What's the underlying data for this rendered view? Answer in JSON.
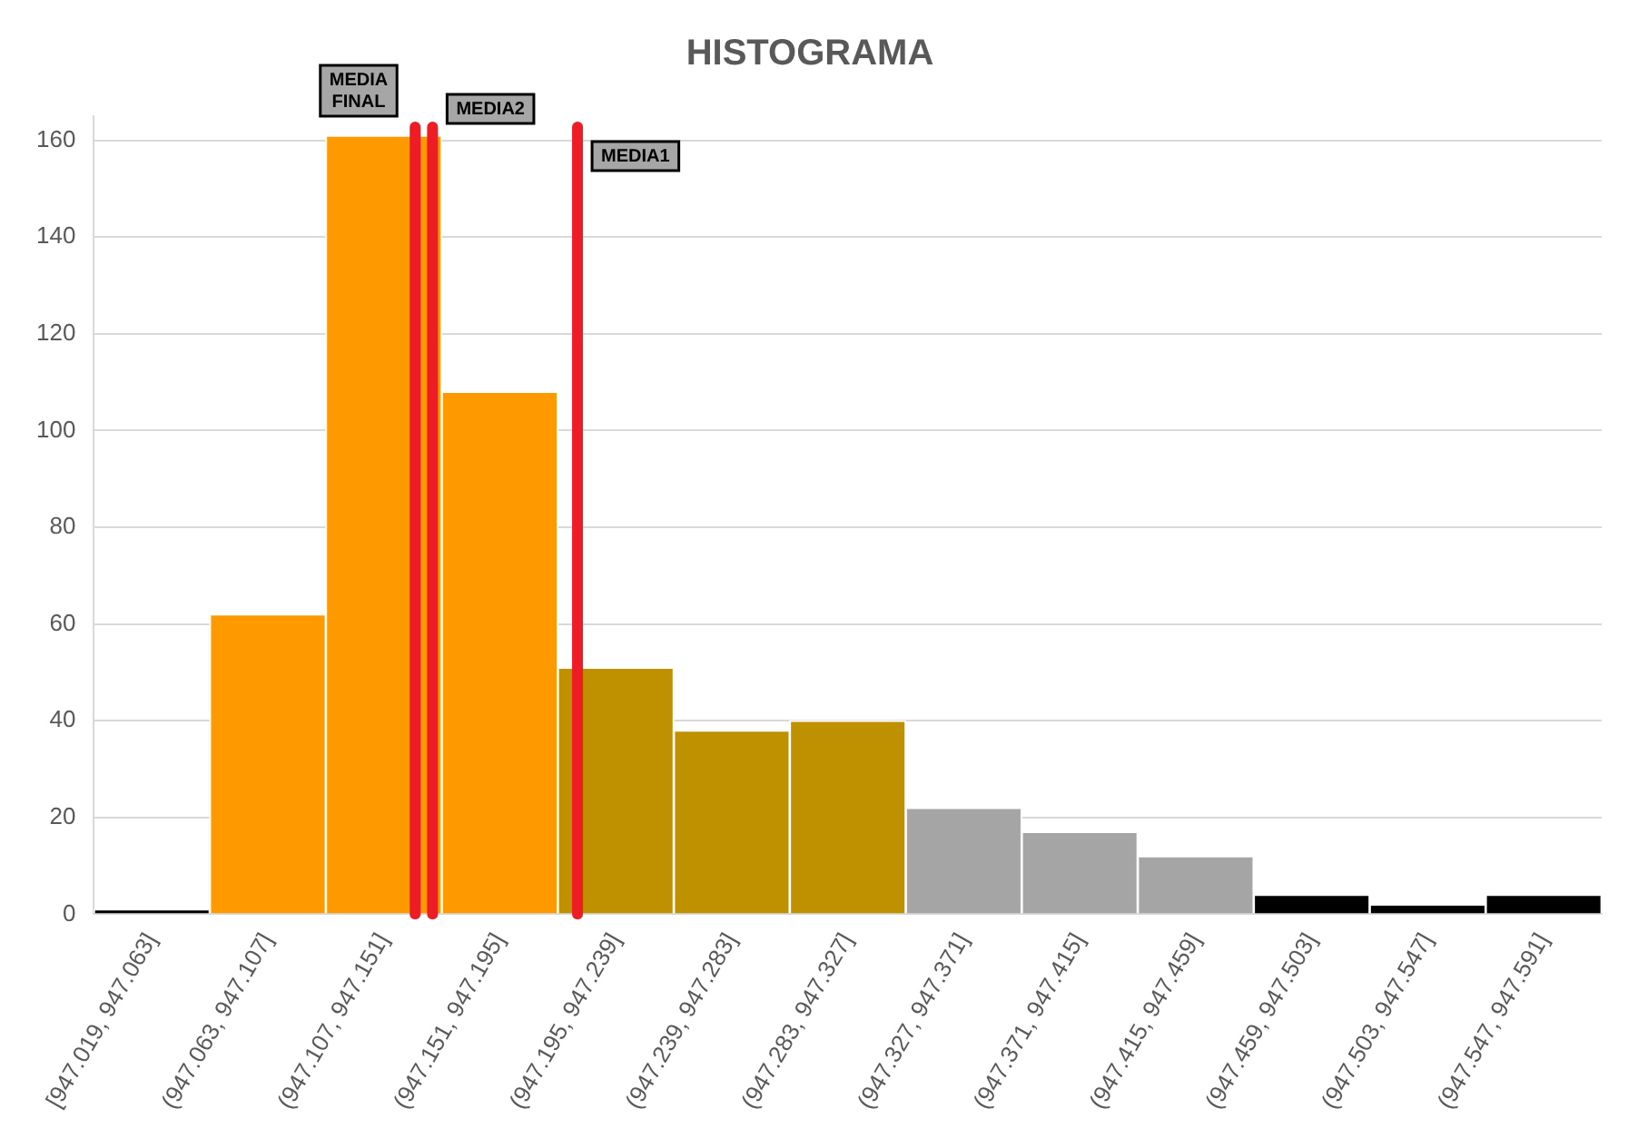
{
  "chart_data": {
    "type": "bar",
    "title": "HISTOGRAMA",
    "categories": [
      "[947.019, 947.063]",
      "(947.063, 947.107]",
      "(947.107, 947.151]",
      "(947.151, 947.195]",
      "(947.195, 947.239]",
      "(947.239, 947.283]",
      "(947.283, 947.327]",
      "(947.327, 947.371]",
      "(947.371, 947.415]",
      "(947.415, 947.459]",
      "(947.459, 947.503]",
      "(947.503, 947.547]",
      "(947.547, 947.591]"
    ],
    "values": [
      1,
      62,
      161,
      108,
      51,
      38,
      40,
      22,
      17,
      12,
      4,
      2,
      4
    ],
    "colors": [
      "#000000",
      "#ff9900",
      "#ff9900",
      "#ff9900",
      "#bf9000",
      "#bf9000",
      "#bf9000",
      "#a5a5a5",
      "#a5a5a5",
      "#a5a5a5",
      "#000000",
      "#000000",
      "#000000"
    ],
    "ylim": [
      0,
      165
    ],
    "yticks": [
      0,
      20,
      40,
      60,
      80,
      100,
      120,
      140,
      160
    ],
    "grid": "y",
    "ref_lines": [
      {
        "axis": "x",
        "value": "(947.107, 947.151]",
        "label": "MEDIA FINAL",
        "color": "#ee1c25"
      },
      {
        "axis": "x",
        "value": "(947.107, 947.151]",
        "label": "MEDIA2",
        "color": "#ee1c25"
      },
      {
        "axis": "x",
        "value": "(947.195, 947.239]",
        "label": "MEDIA1",
        "color": "#ee1c25"
      }
    ]
  }
}
